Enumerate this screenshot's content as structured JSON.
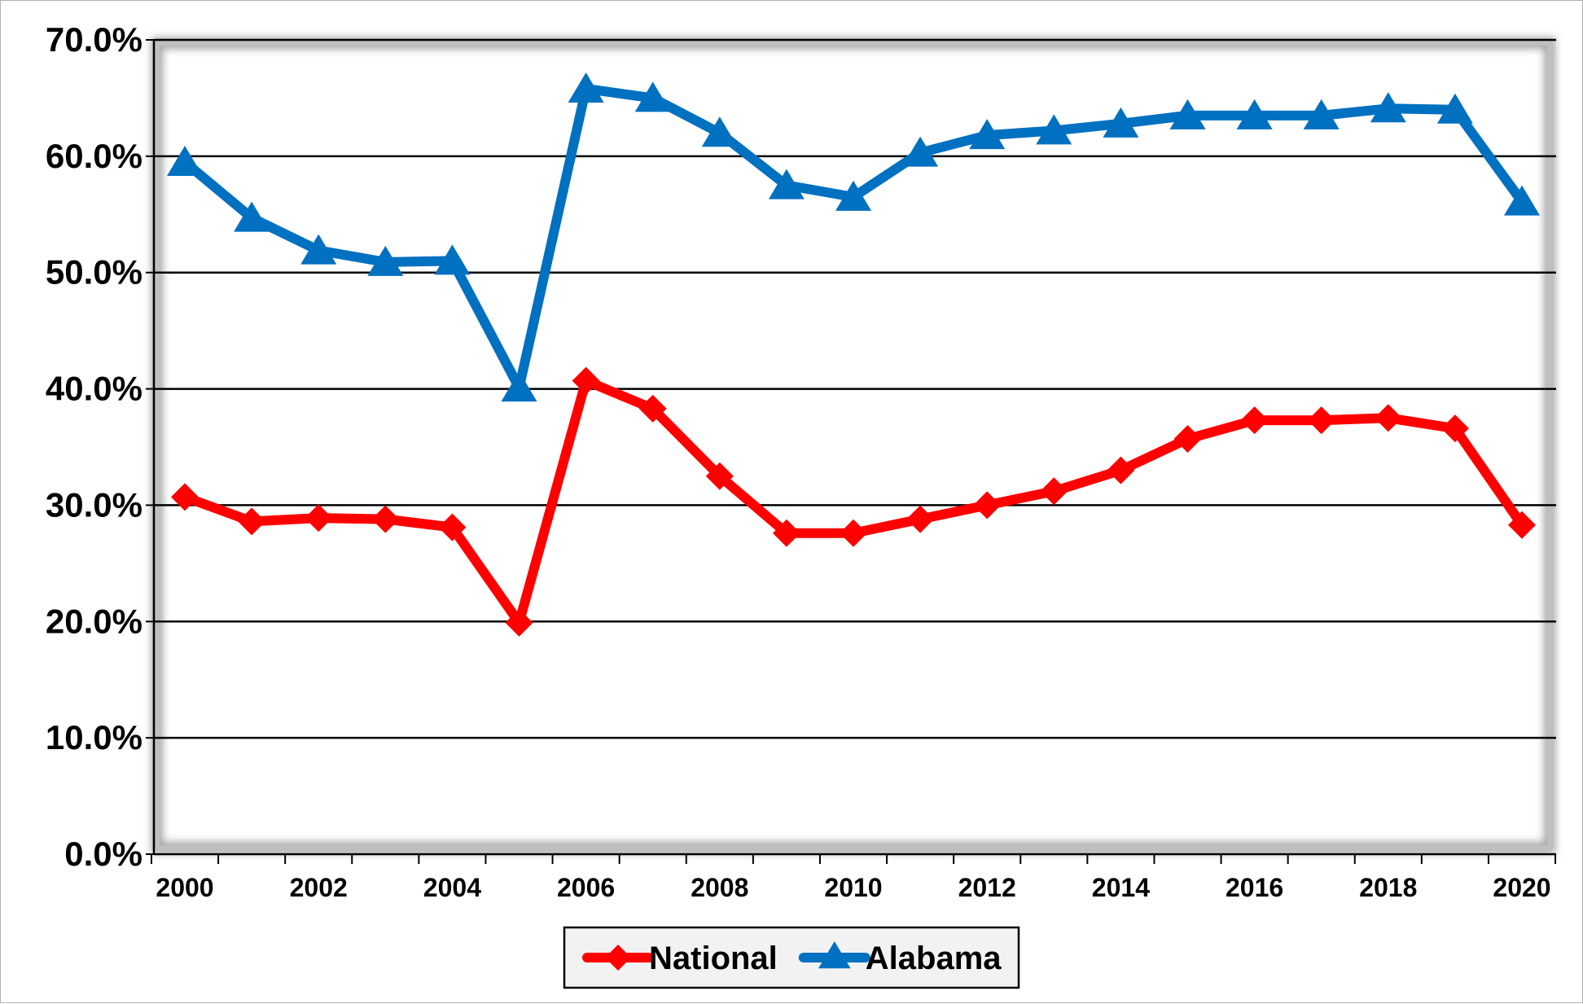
{
  "chart_data": {
    "type": "line",
    "x": [
      2000,
      2001,
      2002,
      2003,
      2004,
      2005,
      2006,
      2007,
      2008,
      2009,
      2010,
      2011,
      2012,
      2013,
      2014,
      2015,
      2016,
      2017,
      2018,
      2019,
      2020
    ],
    "x_tick_labels": [
      "2000",
      "2002",
      "2004",
      "2006",
      "2008",
      "2010",
      "2012",
      "2014",
      "2016",
      "2018",
      "2020"
    ],
    "y_tick_labels": [
      "0.0%",
      "10.0%",
      "20.0%",
      "30.0%",
      "40.0%",
      "50.0%",
      "60.0%",
      "70.0%"
    ],
    "ylim": [
      0,
      70
    ],
    "y_unit": "%",
    "grid": "horizontal major gridlines",
    "legend_position": "bottom",
    "series": [
      {
        "name": "National",
        "color": "#ff0000",
        "marker": "diamond",
        "values": [
          30.7,
          28.6,
          28.9,
          28.8,
          28.1,
          19.9,
          40.7,
          38.3,
          32.5,
          27.6,
          27.6,
          28.8,
          30.0,
          31.2,
          33.0,
          35.7,
          37.3,
          37.3,
          37.5,
          36.6,
          28.3
        ]
      },
      {
        "name": "Alabama",
        "color": "#0070c0",
        "marker": "triangle",
        "values": [
          59.5,
          54.7,
          51.9,
          50.9,
          51.0,
          40.1,
          65.8,
          65.0,
          62.0,
          57.5,
          56.5,
          60.3,
          61.8,
          62.2,
          62.8,
          63.5,
          63.5,
          63.5,
          64.1,
          64.0,
          56.1
        ]
      }
    ]
  }
}
